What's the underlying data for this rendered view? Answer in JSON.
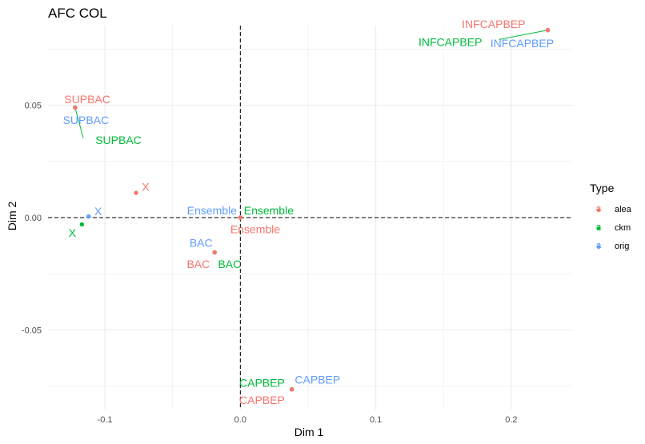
{
  "chart_data": {
    "type": "scatter",
    "title": "AFC COL",
    "xlabel": "Dim 1",
    "ylabel": "Dim 2",
    "xlim": [
      -0.142,
      0.245
    ],
    "ylim": [
      -0.0855,
      0.0855
    ],
    "x_ticks": [
      -0.1,
      0.0,
      0.1,
      0.2
    ],
    "x_tick_labels": [
      "-0.1",
      "0.0",
      "0.1",
      "0.2"
    ],
    "y_ticks": [
      -0.05,
      0.0,
      0.05
    ],
    "y_tick_labels": [
      "-0.05",
      "0.00",
      "0.05"
    ],
    "grid": true,
    "reference_lines": {
      "x": 0,
      "y": 0,
      "style": "dashed"
    },
    "legend": {
      "title": "Type",
      "position": "right",
      "entries": [
        {
          "name": "alea",
          "color": "#F8766D",
          "key_glyph": "a"
        },
        {
          "name": "ckm",
          "color": "#00BA38",
          "key_glyph": "a"
        },
        {
          "name": "orig",
          "color": "#619CFF",
          "key_glyph": "a"
        }
      ]
    },
    "series": [
      {
        "name": "alea",
        "color": "#F8766D",
        "points": [
          {
            "label": "INFCAPBEP",
            "x": 0.227,
            "y": 0.0835
          },
          {
            "label": "SUPBAC",
            "x": -0.122,
            "y": 0.049
          },
          {
            "label": "X",
            "x": -0.077,
            "y": 0.011
          },
          {
            "label": "Ensemble",
            "x": 0.0,
            "y": 0.0
          },
          {
            "label": "BAC",
            "x": -0.019,
            "y": -0.0155
          },
          {
            "label": "CAPBEP",
            "x": 0.038,
            "y": -0.0765
          }
        ]
      },
      {
        "name": "ckm",
        "color": "#00BA38",
        "points": [
          {
            "label": "INFCAPBEP",
            "x": 0.227,
            "y": 0.0835
          },
          {
            "label": "SUPBAC",
            "x": -0.122,
            "y": 0.049
          },
          {
            "label": "X",
            "x": -0.117,
            "y": -0.003
          },
          {
            "label": "Ensemble",
            "x": 0.0,
            "y": 0.0
          },
          {
            "label": "BAC",
            "x": -0.019,
            "y": -0.0155
          },
          {
            "label": "CAPBEP",
            "x": 0.038,
            "y": -0.0765
          }
        ]
      },
      {
        "name": "orig",
        "color": "#619CFF",
        "points": [
          {
            "label": "INFCAPBEP",
            "x": 0.227,
            "y": 0.0835
          },
          {
            "label": "SUPBAC",
            "x": -0.122,
            "y": 0.049
          },
          {
            "label": "X",
            "x": -0.112,
            "y": 0.0005
          },
          {
            "label": "Ensemble",
            "x": 0.0,
            "y": 0.0
          },
          {
            "label": "BAC",
            "x": -0.019,
            "y": -0.0155
          },
          {
            "label": "CAPBEP",
            "x": 0.038,
            "y": -0.0765
          }
        ]
      }
    ],
    "text_labels": [
      {
        "text": "INFCAPBEP",
        "series": "alea",
        "x": 0.187,
        "y": 0.0862
      },
      {
        "text": "INFCAPBEP",
        "series": "ckm",
        "x": 0.155,
        "y": 0.0782
      },
      {
        "text": "INFCAPBEP",
        "series": "orig",
        "x": 0.208,
        "y": 0.0777
      },
      {
        "text": "SUPBAC",
        "series": "alea",
        "x": -0.113,
        "y": 0.0528
      },
      {
        "text": "SUPBAC",
        "series": "orig",
        "x": -0.114,
        "y": 0.0434
      },
      {
        "text": "SUPBAC",
        "series": "ckm",
        "x": -0.09,
        "y": 0.0346
      },
      {
        "text": "X",
        "series": "alea",
        "x": -0.07,
        "y": 0.0138
      },
      {
        "text": "X",
        "series": "orig",
        "x": -0.105,
        "y": 0.0028
      },
      {
        "text": "X",
        "series": "ckm",
        "x": -0.124,
        "y": -0.0068
      },
      {
        "text": "Ensemble",
        "series": "orig",
        "x": -0.021,
        "y": 0.0032
      },
      {
        "text": "Ensemble",
        "series": "ckm",
        "x": 0.021,
        "y": 0.0032
      },
      {
        "text": "Ensemble",
        "series": "alea",
        "x": 0.011,
        "y": -0.0052
      },
      {
        "text": "BAC",
        "series": "orig",
        "x": -0.029,
        "y": -0.0112
      },
      {
        "text": "BAC",
        "series": "alea",
        "x": -0.031,
        "y": -0.0207
      },
      {
        "text": "BAC",
        "series": "ckm",
        "x": -0.008,
        "y": -0.0207
      },
      {
        "text": "CAPBEP",
        "series": "ckm",
        "x": 0.016,
        "y": -0.0735
      },
      {
        "text": "CAPBEP",
        "series": "orig",
        "x": 0.057,
        "y": -0.0722
      },
      {
        "text": "CAPBEP",
        "series": "alea",
        "x": 0.016,
        "y": -0.0812
      }
    ]
  }
}
